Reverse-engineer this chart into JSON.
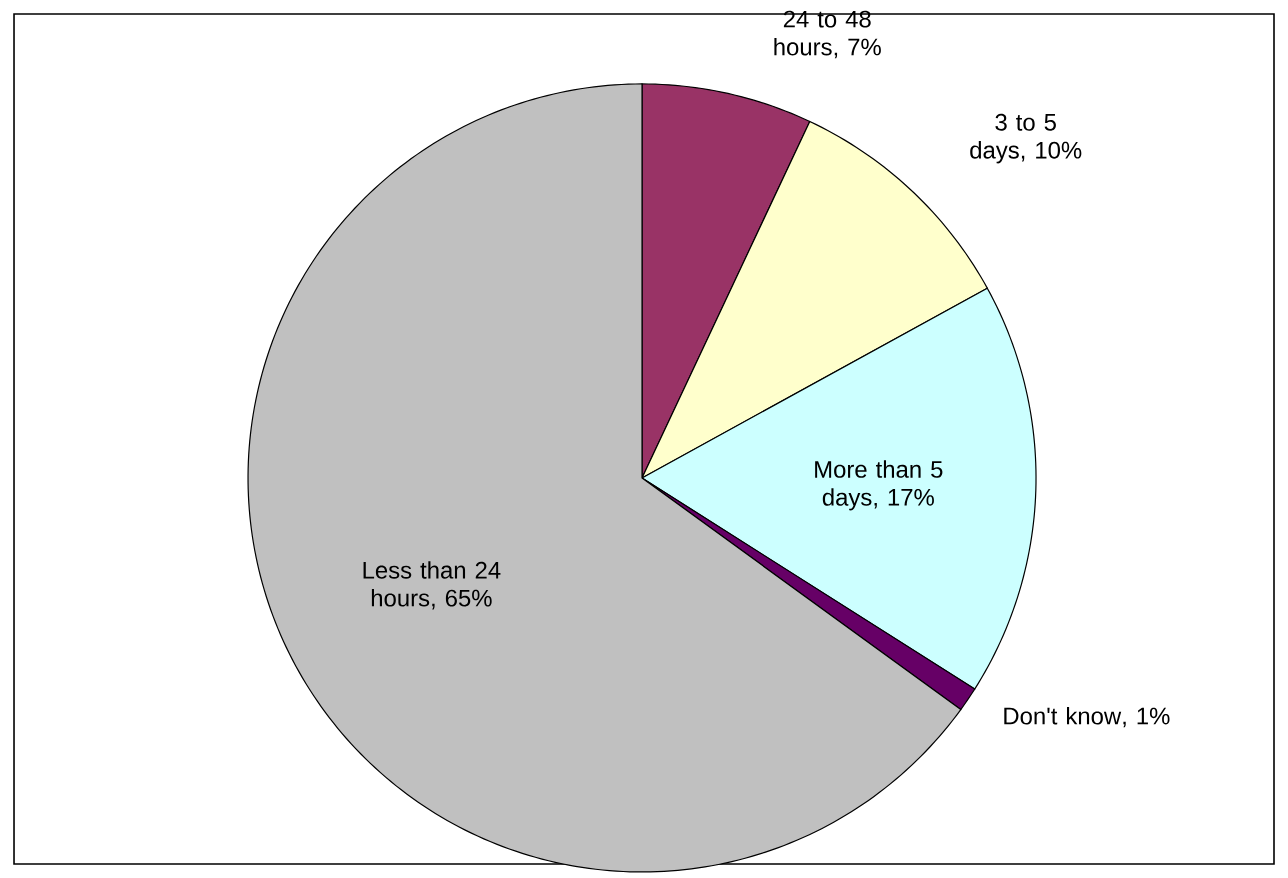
{
  "chart_data": {
    "type": "pie",
    "categories": [
      "24 to 48 hours",
      "3 to 5 days",
      "More than 5 days",
      "Don't know",
      "Less than 24 hours"
    ],
    "values": [
      7,
      10,
      17,
      1,
      65
    ],
    "value_labels": [
      ", 7%",
      ", 10%",
      ", 17%",
      ", 1%",
      ", 65%"
    ],
    "colors": [
      "#993366",
      "#ffffcc",
      "#ccffff",
      "#660066",
      "#c0c0c0"
    ]
  }
}
